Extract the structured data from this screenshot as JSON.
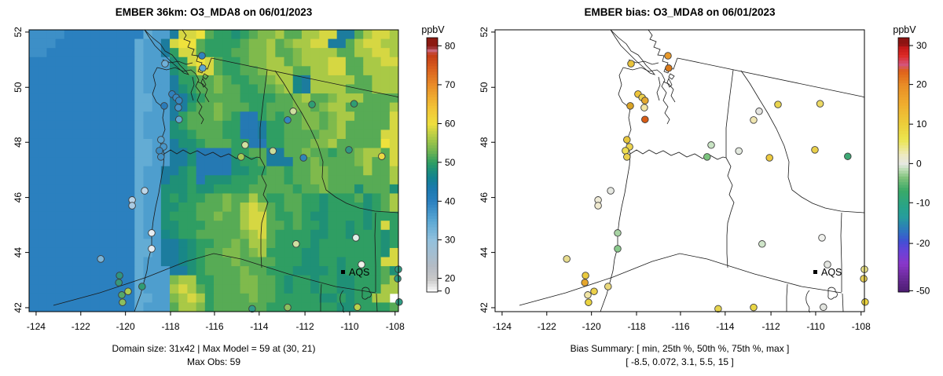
{
  "chart_data": [
    {
      "type": "heatmap",
      "title": "EMBER 36km: O3_MDA8 on 06/01/2023",
      "units": "ppbV",
      "x_ticks": [
        -124,
        -122,
        -120,
        -118,
        -116,
        -114,
        -112,
        -110,
        -108
      ],
      "y_ticks": [
        52,
        50,
        48,
        46,
        44,
        42
      ],
      "colorbar_label": "ppbV",
      "colorbar_ticks": [
        0,
        20,
        30,
        40,
        50,
        60,
        70,
        80
      ],
      "caption1": "Domain size: 31x42 | Max Model = 59 at (30, 21)",
      "caption2": "Max Obs: 59",
      "legend_label": "AQS",
      "domain_size": "31x42",
      "max_model": 59,
      "max_model_at": [
        30,
        21
      ],
      "max_obs": 59,
      "value_map": {
        "0": 34,
        "1": 36,
        "2": 38,
        "3": 40,
        "4": 42,
        "5": 44,
        "6": 46,
        "7": 48,
        "8": 50,
        "9": 52,
        "a": 54,
        "b": 56,
        "c": 58,
        "d": 60
      },
      "grid_rows": [
        "222233333333301 15ccd988789aab99bbcc559bccbb",
        "222333333333011 5cdd988889aab9abbcc559bccbb",
        "223333333333011 58cc988899aab99abbbb99bbccb",
        "333333333333011 178cdc9889aabb9abbbcc99bbcc",
        "333333333333011 1789cc98899abbb99bbcc99bbbb",
        "333333333333011 158899a98899abb65bbbbb99bbb",
        "333333333333011 157899a998899ab65bbbb999bbb",
        "333333333333001 155789999888899ab99abbb9999b",
        "333333333333001 155899a99988999aa9abb99999b",
        "333333333333011 158999a984489899aa9abb9999c",
        "333333333333011 1789999884458899aa9ab99999c",
        "333333333333011 1778999884458899 99aab9999cc",
        "333333333333001 1577899988448899 9aab99999dc",
        "333333333333001 15574444889955 99a99899abb9c",
        "333333333333001 15574444788955 599a9999ab99c",
        "333333333333011 5578444477889989 9aa9999b99b",
        "333333333333011 577847778889998 99aa9999999b",
        "333333333333011 77787788889999 9899a99979997",
        "333333333333011 7878899a99b988998878889789b",
        "333333333333011 7788999a9bcb98998878888789b",
        "333333333333011 788899a99bcc988987788887888",
        "333333333333011 778889999bcc9989887887878c8",
        "333333333333011 678899999abc98888778 8788878",
        "333333333333001 55678899a9bb98888788 8888878",
        "333333333333001 5567899aa9ab88887788 888887c",
        "333333333333011 55678999a999988877887 8888cc",
        "333333333333011 155789999a99888777787 888897",
        "333333333333011 1abb88999aa99878878877 8889b",
        "333333333333011 1bcb98999aa99878878877 888bb",
        "333333333333001 1abcb89999a99888887787 88bb",
        "333333333333011 19bba8999999888888887788889b"
      ],
      "raster_note": "values in ppbV, encoded row strings top-to-bottom (spaces ignored), 42 columns x 31 rows"
    },
    {
      "type": "scatter",
      "title": "EMBER bias: O3_MDA8 on 06/01/2023",
      "units": "ppbV",
      "x_ticks": [
        -124,
        -122,
        -120,
        -118,
        -116,
        -114,
        -112,
        -110,
        -108
      ],
      "y_ticks": [
        52,
        50,
        48,
        46,
        44,
        42
      ],
      "colorbar_label": "ppbV",
      "colorbar_ticks": [
        30,
        20,
        10,
        0,
        -10,
        -20,
        -50
      ],
      "caption1": "Bias Summary: [ min, 25th %, 50th %, 75th %, max ]",
      "caption2": "[ -8.5,  0.072,  3.1,  5.5,  15 ]",
      "legend_label": "AQS",
      "bias_summary": {
        "min": -8.5,
        "p25": 0.072,
        "median": 3.1,
        "p75": 5.5,
        "max": 15
      }
    }
  ],
  "stations": [
    {
      "fx": 0.368,
      "fy": 0.12,
      "obs": "#6fb0d9",
      "bias": "#e9c33a"
    },
    {
      "fx": 0.468,
      "fy": 0.092,
      "obs": "#3082be",
      "bias": "#e8992a"
    },
    {
      "fx": 0.47,
      "fy": 0.136,
      "obs": "#5ba5d1",
      "bias": "#d97a1b"
    },
    {
      "fx": 0.387,
      "fy": 0.228,
      "obs": "#2f80bd",
      "bias": "#eec43a"
    },
    {
      "fx": 0.398,
      "fy": 0.24,
      "obs": "#3688c1",
      "bias": "#edd14c"
    },
    {
      "fx": 0.406,
      "fy": 0.251,
      "obs": "#3587c0",
      "bias": "#e5a82e"
    },
    {
      "fx": 0.366,
      "fy": 0.27,
      "obs": "#2a7cba",
      "bias": "#d9a326"
    },
    {
      "fx": 0.404,
      "fy": 0.276,
      "obs": "#4694c8",
      "bias": "#f3e6a3"
    },
    {
      "fx": 0.406,
      "fy": 0.318,
      "obs": "#60a6d1",
      "bias": "#d85c15"
    },
    {
      "fx": 0.715,
      "fy": 0.289,
      "obs": "#cfdf9e",
      "bias": "#e4e4e0"
    },
    {
      "fx": 0.7,
      "fy": 0.32,
      "obs": "#3486c0",
      "bias": "#efe5b0"
    },
    {
      "fx": 0.88,
      "fy": 0.262,
      "obs": "#2f9d72",
      "bias": "#ecd964"
    },
    {
      "fx": 0.66,
      "fy": 0.43,
      "obs": "#cadc9a",
      "bias": "#e3e9df"
    },
    {
      "fx": 0.743,
      "fy": 0.454,
      "obs": "#2e85ba",
      "bias": "#ecc93f"
    },
    {
      "fx": 0.585,
      "fy": 0.409,
      "obs": "#d2e2a0",
      "bias": "#c9e4c4"
    },
    {
      "fx": 0.574,
      "fy": 0.451,
      "obs": "#a6cb56",
      "bias": "#7cc47e"
    },
    {
      "fx": 0.955,
      "fy": 0.449,
      "obs": "#ecd943",
      "bias": "#3da874"
    },
    {
      "fx": 0.866,
      "fy": 0.426,
      "obs": "#2f9784",
      "bias": "#e9cf4a"
    },
    {
      "fx": 0.357,
      "fy": 0.39,
      "obs": "#58a3d0",
      "bias": "#e7c63c"
    },
    {
      "fx": 0.364,
      "fy": 0.415,
      "obs": "#4897ca",
      "bias": "#edd44e"
    },
    {
      "fx": 0.353,
      "fy": 0.429,
      "obs": "#3a8cc3",
      "bias": "#eede52"
    },
    {
      "fx": 0.357,
      "fy": 0.451,
      "obs": "#4392c6",
      "bias": "#ead04b"
    },
    {
      "fx": 0.279,
      "fy": 0.604,
      "obs": "#b8d4e8",
      "bias": "#eeead6"
    },
    {
      "fx": 0.279,
      "fy": 0.624,
      "obs": "#a9cbe3",
      "bias": "#f0ead0"
    },
    {
      "fx": 0.313,
      "fy": 0.571,
      "obs": "#bdd7ea",
      "bias": "#e6e8e2"
    },
    {
      "fx": 0.332,
      "fy": 0.721,
      "obs": "#e8eef3",
      "bias": "#a8d4a4"
    },
    {
      "fx": 0.332,
      "fy": 0.777,
      "obs": "#e4ecf2",
      "bias": "#89c98b"
    },
    {
      "fx": 0.194,
      "fy": 0.813,
      "obs": "#7ab4d8",
      "bias": "#e7dc8e"
    },
    {
      "fx": 0.245,
      "fy": 0.872,
      "obs": "#2f9480",
      "bias": "#eaca3e"
    },
    {
      "fx": 0.243,
      "fy": 0.897,
      "obs": "#37987b",
      "bias": "#e5a62c"
    },
    {
      "fx": 0.268,
      "fy": 0.928,
      "obs": "#a9cb52",
      "bias": "#ecd04a"
    },
    {
      "fx": 0.251,
      "fy": 0.941,
      "obs": "#54a86b",
      "bias": "#f0e5a5"
    },
    {
      "fx": 0.253,
      "fy": 0.967,
      "obs": "#8cbf5e",
      "bias": "#ead33f"
    },
    {
      "fx": 0.306,
      "fy": 0.911,
      "obs": "#2f9c74",
      "bias": "#e9d87b"
    },
    {
      "fx": 0.604,
      "fy": 0.99,
      "obs": "#2f9b8a",
      "bias": "#e6d44e"
    },
    {
      "fx": 0.7,
      "fy": 0.985,
      "obs": "#8cbf5e",
      "bias": "#e9d645"
    },
    {
      "fx": 0.723,
      "fy": 0.76,
      "obs": "#cfe0a2",
      "bias": "#cfe5c9"
    },
    {
      "fx": 0.9,
      "fy": 0.833,
      "obs": "#eef2ea",
      "bias": "#e4e6e1"
    },
    {
      "fx": 0.889,
      "fy": 0.984,
      "obs": "#b9d14b",
      "bias": "#e2e4df"
    },
    {
      "fx": 0.766,
      "fy": 0.265,
      "obs": "#2f9e74",
      "bias": "#e9d44e"
    },
    {
      "fx": 1.0,
      "fy": 0.85,
      "obs": "#2f9c84",
      "bias": "#ece487"
    },
    {
      "fx": 0.998,
      "fy": 0.883,
      "obs": "#2f9c84",
      "bias": "#e8d055"
    },
    {
      "fx": 1.002,
      "fy": 0.966,
      "obs": "#2f9c84",
      "bias": "#ecd43f"
    },
    {
      "fx": 0.885,
      "fy": 0.738,
      "obs": "#dfeee6",
      "bias": "#eff0ec"
    }
  ]
}
